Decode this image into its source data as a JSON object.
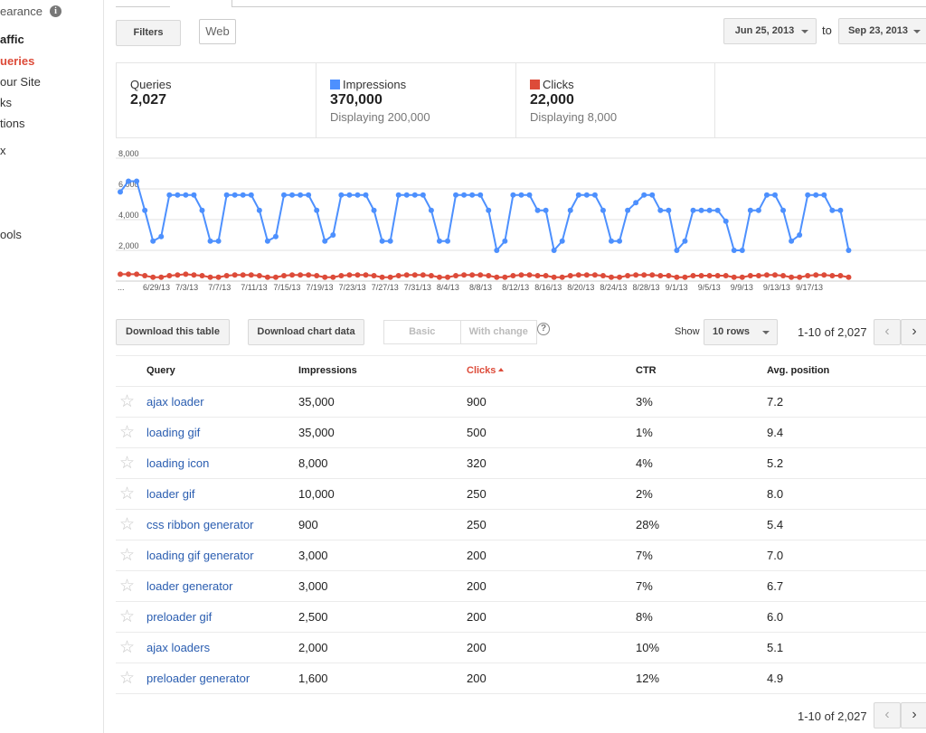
{
  "sidebar": {
    "appearance": "earance",
    "traffic": "affic",
    "queries": "ueries",
    "your_site": "our Site",
    "links": "ks",
    "actions": "tions",
    "index": "x",
    "tools": "ools"
  },
  "toolbar": {
    "filters_label": "Filters",
    "web_label": "Web",
    "date_from": "Jun 25, 2013",
    "to_label": "to",
    "date_to": "Sep 23, 2013"
  },
  "summary": {
    "queries_label": "Queries",
    "queries_value": "2,027",
    "impressions_label": "Impressions",
    "impressions_value": "370,000",
    "impressions_sub": "Displaying 200,000",
    "clicks_label": "Clicks",
    "clicks_value": "22,000",
    "clicks_sub": "Displaying 8,000",
    "impressions_color": "#4d90fe",
    "clicks_color": "#dd4b39"
  },
  "chart_data": {
    "type": "line",
    "ylim": [
      0,
      8000
    ],
    "y_ticks": [
      "2,000",
      "4,000",
      "6,000",
      "8,000"
    ],
    "x_tick_labels": [
      "...",
      "6/29/13",
      "7/3/13",
      "7/7/13",
      "7/11/13",
      "7/15/13",
      "7/19/13",
      "7/23/13",
      "7/27/13",
      "7/31/13",
      "8/4/13",
      "8/8/13",
      "8/12/13",
      "8/16/13",
      "8/20/13",
      "8/24/13",
      "8/28/13",
      "9/1/13",
      "9/5/13",
      "9/9/13",
      "9/13/13",
      "9/17/13"
    ],
    "series": [
      {
        "name": "Impressions",
        "color": "#4d90fe",
        "values": [
          5800,
          6500,
          6500,
          4600,
          2600,
          2900,
          5600,
          5600,
          5600,
          5600,
          4600,
          2600,
          2600,
          5600,
          5600,
          5600,
          5600,
          4600,
          2600,
          2900,
          5600,
          5600,
          5600,
          5600,
          4600,
          2600,
          3000,
          5600,
          5600,
          5600,
          5600,
          4600,
          2600,
          2600,
          5600,
          5600,
          5600,
          5600,
          4600,
          2600,
          2600,
          5600,
          5600,
          5600,
          5600,
          4600,
          2000,
          2600,
          5600,
          5600,
          5600,
          4600,
          4600,
          2000,
          2600,
          4600,
          5600,
          5600,
          5600,
          4600,
          2600,
          2600,
          4600,
          5100,
          5600,
          5600,
          4600,
          4600,
          2000,
          2600,
          4600,
          4600,
          4600,
          4600,
          3900,
          2000,
          2000,
          4600,
          4600,
          5600,
          5600,
          4600,
          2600,
          3000,
          5600,
          5600,
          5600,
          4600,
          4600,
          2000
        ]
      },
      {
        "name": "Clicks",
        "color": "#dd4b39",
        "values": [
          450,
          450,
          450,
          350,
          250,
          250,
          350,
          400,
          450,
          400,
          350,
          250,
          250,
          350,
          400,
          400,
          400,
          350,
          250,
          250,
          350,
          400,
          400,
          400,
          350,
          250,
          250,
          350,
          400,
          400,
          400,
          350,
          250,
          250,
          350,
          400,
          400,
          400,
          350,
          250,
          250,
          350,
          400,
          400,
          400,
          350,
          250,
          250,
          350,
          400,
          400,
          350,
          350,
          250,
          250,
          350,
          400,
          400,
          400,
          350,
          250,
          250,
          350,
          400,
          400,
          400,
          350,
          350,
          250,
          250,
          350,
          350,
          350,
          350,
          350,
          250,
          250,
          350,
          350,
          400,
          400,
          350,
          250,
          250,
          350,
          400,
          400,
          350,
          350,
          250
        ]
      }
    ]
  },
  "table_toolbar": {
    "download_table": "Download this table",
    "download_chart": "Download chart data",
    "view_basic": "Basic",
    "view_change": "With change",
    "help": "?",
    "show_label": "Show",
    "rows_option": "10 rows",
    "pager_text": "1-10 of 2,027",
    "prev": "‹",
    "next": "›"
  },
  "table": {
    "headers": {
      "query": "Query",
      "impressions": "Impressions",
      "clicks": "Clicks",
      "ctr": "CTR",
      "position": "Avg. position"
    },
    "rows": [
      {
        "query": "ajax loader",
        "impressions": "35,000",
        "clicks": "900",
        "ctr": "3%",
        "position": "7.2"
      },
      {
        "query": "loading gif",
        "impressions": "35,000",
        "clicks": "500",
        "ctr": "1%",
        "position": "9.4"
      },
      {
        "query": "loading icon",
        "impressions": "8,000",
        "clicks": "320",
        "ctr": "4%",
        "position": "5.2"
      },
      {
        "query": "loader gif",
        "impressions": "10,000",
        "clicks": "250",
        "ctr": "2%",
        "position": "8.0"
      },
      {
        "query": "css ribbon generator",
        "impressions": "900",
        "clicks": "250",
        "ctr": "28%",
        "position": "5.4"
      },
      {
        "query": "loading gif generator",
        "impressions": "3,000",
        "clicks": "200",
        "ctr": "7%",
        "position": "7.0"
      },
      {
        "query": "loader generator",
        "impressions": "3,000",
        "clicks": "200",
        "ctr": "7%",
        "position": "6.7"
      },
      {
        "query": "preloader gif",
        "impressions": "2,500",
        "clicks": "200",
        "ctr": "8%",
        "position": "6.0"
      },
      {
        "query": "ajax loaders",
        "impressions": "2,000",
        "clicks": "200",
        "ctr": "10%",
        "position": "5.1"
      },
      {
        "query": "preloader generator",
        "impressions": "1,600",
        "clicks": "200",
        "ctr": "12%",
        "position": "4.9"
      }
    ]
  }
}
